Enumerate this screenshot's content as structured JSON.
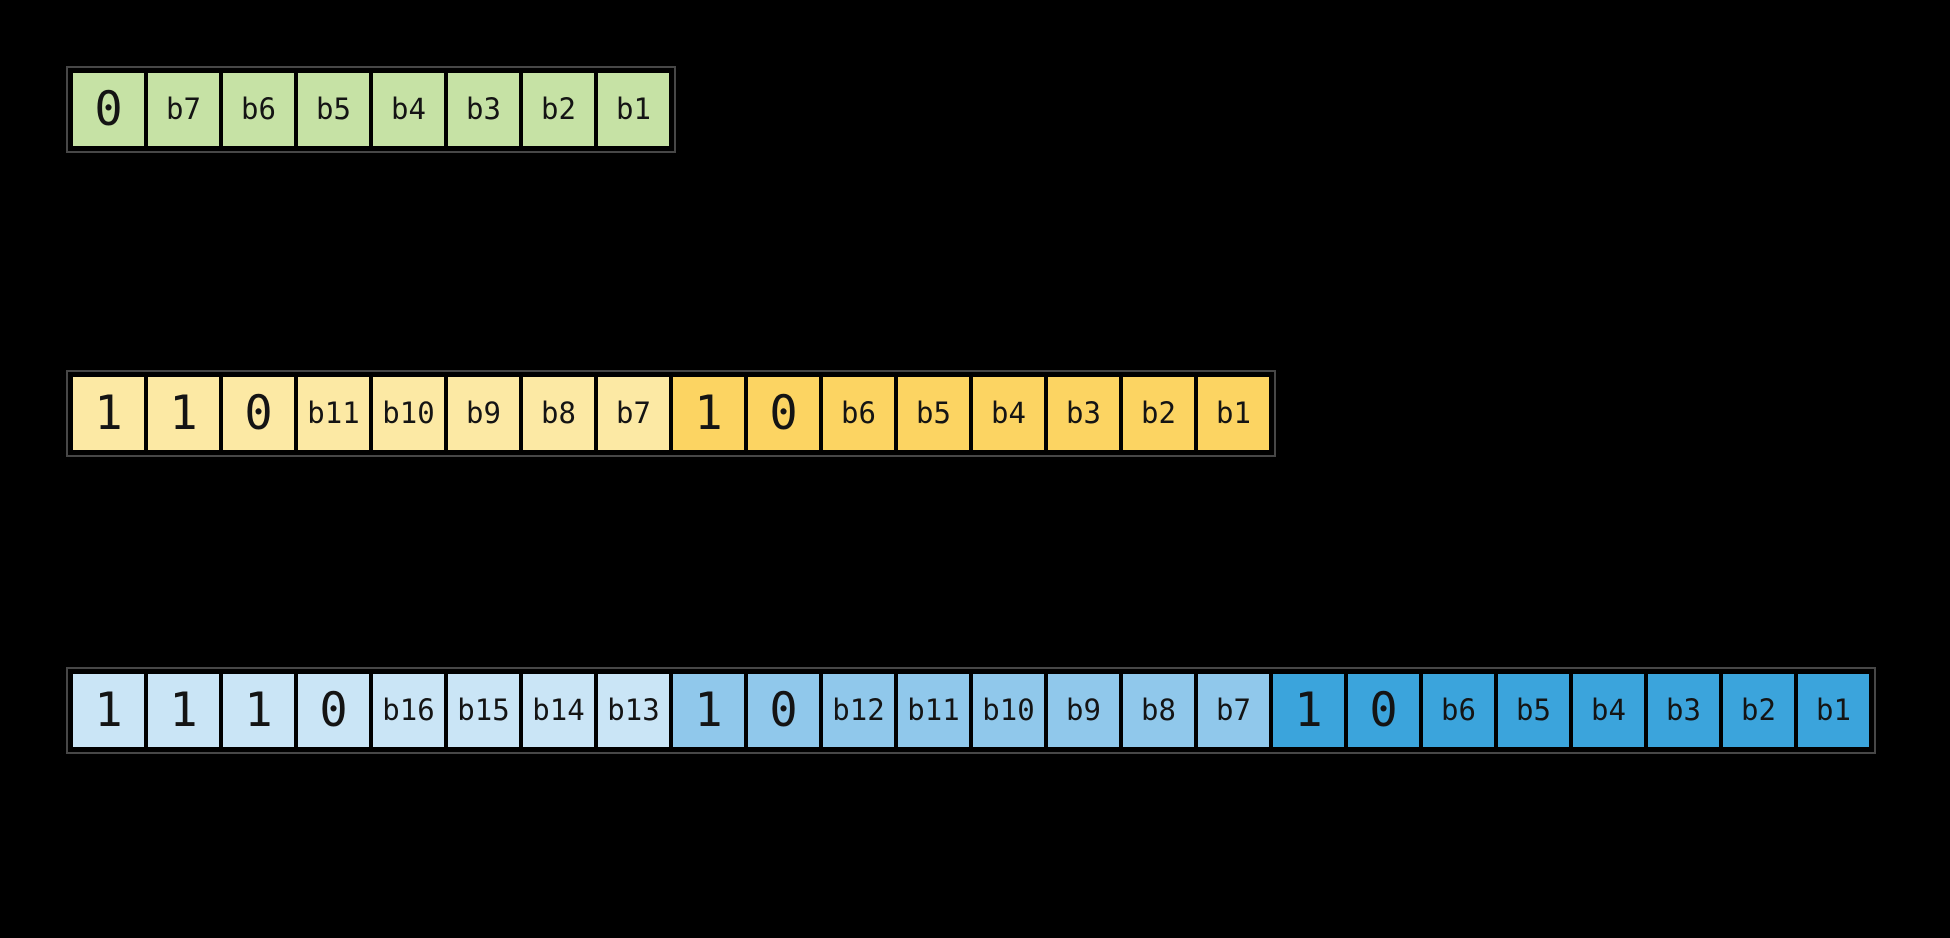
{
  "diagram": {
    "kind": "utf8-byte-sequence-diagram",
    "background_color": "#000000",
    "row_outline_color": "#474747",
    "bit_text_color": "#141414",
    "rows": [
      {
        "name": "one-byte-sequence",
        "bytes": [
          {
            "name": "byte-1",
            "color": "#C6E2A5",
            "bits": [
              {
                "label": "0",
                "type": "fixed"
              },
              {
                "label": "b7",
                "type": "data"
              },
              {
                "label": "b6",
                "type": "data"
              },
              {
                "label": "b5",
                "type": "data"
              },
              {
                "label": "b4",
                "type": "data"
              },
              {
                "label": "b3",
                "type": "data"
              },
              {
                "label": "b2",
                "type": "data"
              },
              {
                "label": "b1",
                "type": "data"
              }
            ]
          }
        ]
      },
      {
        "name": "two-byte-sequence",
        "bytes": [
          {
            "name": "byte-1",
            "color": "#FCE9A4",
            "bits": [
              {
                "label": "1",
                "type": "fixed"
              },
              {
                "label": "1",
                "type": "fixed"
              },
              {
                "label": "0",
                "type": "fixed"
              },
              {
                "label": "b11",
                "type": "data"
              },
              {
                "label": "b10",
                "type": "data"
              },
              {
                "label": "b9",
                "type": "data"
              },
              {
                "label": "b8",
                "type": "data"
              },
              {
                "label": "b7",
                "type": "data"
              }
            ]
          },
          {
            "name": "byte-2",
            "color": "#FCD462",
            "bits": [
              {
                "label": "1",
                "type": "fixed"
              },
              {
                "label": "0",
                "type": "fixed"
              },
              {
                "label": "b6",
                "type": "data"
              },
              {
                "label": "b5",
                "type": "data"
              },
              {
                "label": "b4",
                "type": "data"
              },
              {
                "label": "b3",
                "type": "data"
              },
              {
                "label": "b2",
                "type": "data"
              },
              {
                "label": "b1",
                "type": "data"
              }
            ]
          }
        ]
      },
      {
        "name": "three-byte-sequence",
        "bytes": [
          {
            "name": "byte-1",
            "color": "#CAE5F6",
            "bits": [
              {
                "label": "1",
                "type": "fixed"
              },
              {
                "label": "1",
                "type": "fixed"
              },
              {
                "label": "1",
                "type": "fixed"
              },
              {
                "label": "0",
                "type": "fixed"
              },
              {
                "label": "b16",
                "type": "data"
              },
              {
                "label": "b15",
                "type": "data"
              },
              {
                "label": "b14",
                "type": "data"
              },
              {
                "label": "b13",
                "type": "data"
              }
            ]
          },
          {
            "name": "byte-2",
            "color": "#90C8EB",
            "bits": [
              {
                "label": "1",
                "type": "fixed"
              },
              {
                "label": "0",
                "type": "fixed"
              },
              {
                "label": "b12",
                "type": "data"
              },
              {
                "label": "b11",
                "type": "data"
              },
              {
                "label": "b10",
                "type": "data"
              },
              {
                "label": "b9",
                "type": "data"
              },
              {
                "label": "b8",
                "type": "data"
              },
              {
                "label": "b7",
                "type": "data"
              }
            ]
          },
          {
            "name": "byte-3",
            "color": "#3BA4DC",
            "bits": [
              {
                "label": "1",
                "type": "fixed"
              },
              {
                "label": "0",
                "type": "fixed"
              },
              {
                "label": "b6",
                "type": "data"
              },
              {
                "label": "b5",
                "type": "data"
              },
              {
                "label": "b4",
                "type": "data"
              },
              {
                "label": "b3",
                "type": "data"
              },
              {
                "label": "b2",
                "type": "data"
              },
              {
                "label": "b1",
                "type": "data"
              }
            ]
          }
        ]
      }
    ]
  }
}
